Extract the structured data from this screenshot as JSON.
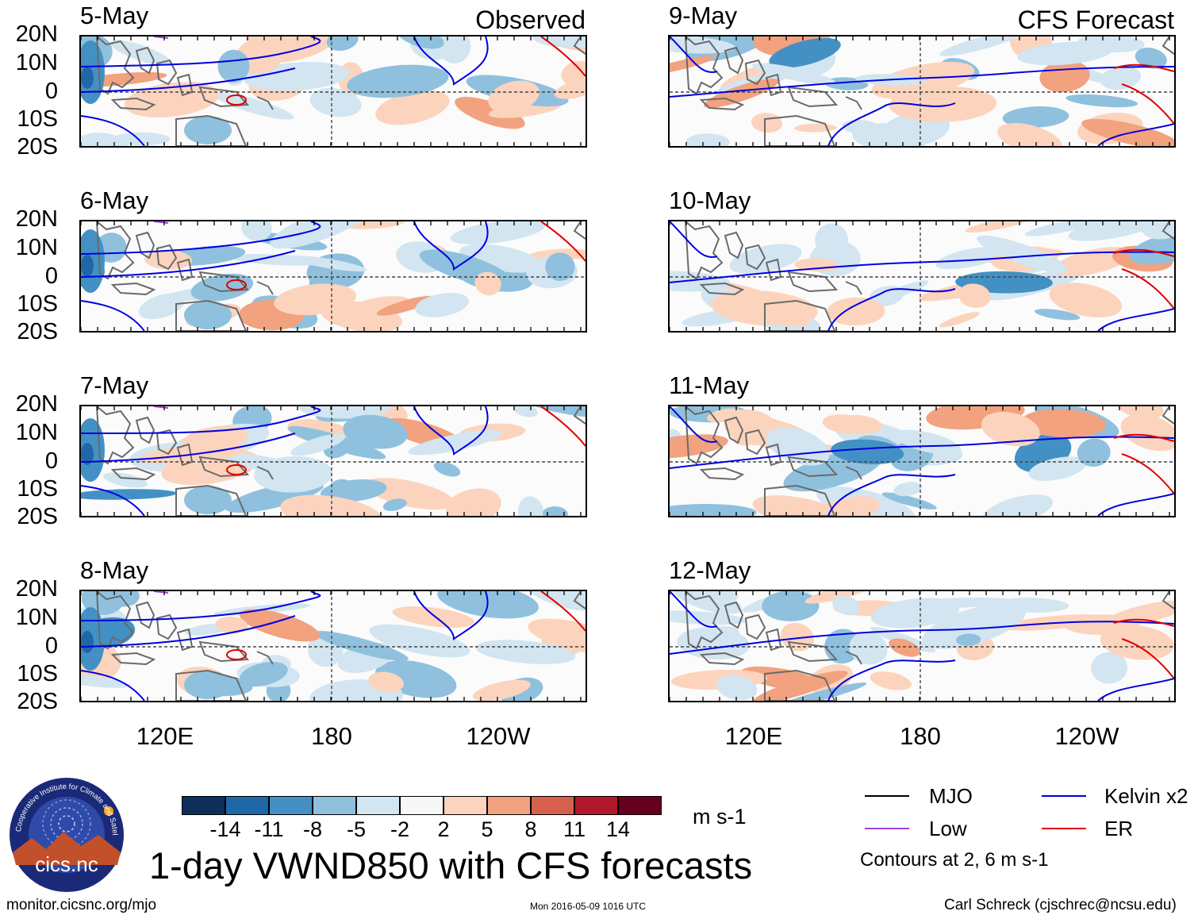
{
  "header": {
    "left": "Observed",
    "right": "CFS Forecast"
  },
  "panels": [
    {
      "date": "5-May",
      "group": "observed"
    },
    {
      "date": "6-May",
      "group": "observed"
    },
    {
      "date": "7-May",
      "group": "observed"
    },
    {
      "date": "8-May",
      "group": "observed"
    },
    {
      "date": "9-May",
      "group": "forecast"
    },
    {
      "date": "10-May",
      "group": "forecast"
    },
    {
      "date": "11-May",
      "group": "forecast"
    },
    {
      "date": "12-May",
      "group": "forecast"
    }
  ],
  "lat_labels": [
    "20N",
    "10N",
    "0",
    "10S",
    "20S"
  ],
  "lon_labels": [
    "120E",
    "180",
    "120W"
  ],
  "colorbar": {
    "unit": "m s-1",
    "ticks": [
      "-14",
      "-11",
      "-8",
      "-5",
      "-2",
      "2",
      "5",
      "8",
      "11",
      "14"
    ],
    "colors": [
      "#0d2f5a",
      "#1f68a8",
      "#4391c4",
      "#8fc1de",
      "#d2e5f1",
      "#f7f7f7",
      "#fcd4bd",
      "#f2a27e",
      "#d6604d",
      "#b2182b",
      "#67001f"
    ]
  },
  "legend": {
    "mjo": "MJO",
    "kelvin": "Kelvin x2",
    "low": "Low",
    "er": "ER",
    "note": "Contours at 2, 6 m s-1",
    "colors": {
      "mjo": "#000000",
      "kelvin": "#0000e0",
      "low": "#a040e0",
      "er": "#e00000"
    }
  },
  "title": "1-day VWND850 with CFS forecasts",
  "logo_text": "cics.nc",
  "logo_ring_text": "Cooperative Institute for Climate and Satellites",
  "footer": {
    "left": "monitor.cicsnc.org/mjo",
    "center": "Mon 2016-05-09 1016 UTC",
    "right": "Carl Schreck (cjschrec@ncsu.edu)"
  }
}
